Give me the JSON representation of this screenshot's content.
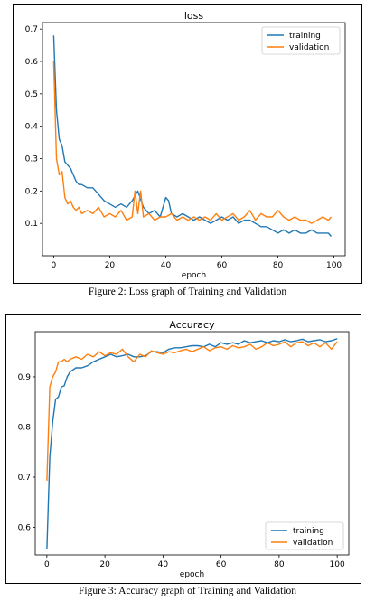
{
  "figures": [
    {
      "caption": "Figure 2: Loss graph of Training and Validation"
    },
    {
      "caption": "Figure 3: Accuracy graph of Training and Validation"
    }
  ],
  "chart_data": [
    {
      "type": "line",
      "title": "loss",
      "xlabel": "epoch",
      "ylabel": "",
      "xlim": [
        -4,
        104
      ],
      "ylim": [
        0.0,
        0.72
      ],
      "xticks": [
        0,
        20,
        40,
        60,
        80,
        100
      ],
      "yticks": [
        0.1,
        0.2,
        0.3,
        0.4,
        0.5,
        0.6,
        0.7
      ],
      "ytick_labels": [
        "0.1",
        "0.2",
        "0.3",
        "0.4",
        "0.5",
        "0.6",
        "0.7"
      ],
      "legend": "top-right",
      "grid": false,
      "series": [
        {
          "name": "training",
          "color": "#1f77b4",
          "x": [
            0,
            1,
            2,
            3,
            4,
            5,
            6,
            7,
            8,
            9,
            10,
            12,
            14,
            16,
            18,
            20,
            22,
            24,
            26,
            28,
            30,
            32,
            34,
            36,
            38,
            40,
            41,
            42,
            44,
            46,
            48,
            50,
            52,
            54,
            56,
            58,
            60,
            62,
            64,
            66,
            68,
            70,
            72,
            74,
            76,
            78,
            80,
            82,
            84,
            86,
            88,
            90,
            92,
            94,
            96,
            98,
            99
          ],
          "y": [
            0.68,
            0.45,
            0.36,
            0.34,
            0.29,
            0.28,
            0.27,
            0.25,
            0.23,
            0.22,
            0.22,
            0.21,
            0.21,
            0.19,
            0.17,
            0.16,
            0.15,
            0.16,
            0.15,
            0.17,
            0.2,
            0.15,
            0.13,
            0.14,
            0.12,
            0.18,
            0.17,
            0.13,
            0.12,
            0.13,
            0.12,
            0.11,
            0.12,
            0.11,
            0.1,
            0.11,
            0.12,
            0.11,
            0.12,
            0.1,
            0.11,
            0.11,
            0.1,
            0.09,
            0.09,
            0.08,
            0.07,
            0.08,
            0.07,
            0.08,
            0.07,
            0.07,
            0.08,
            0.07,
            0.07,
            0.07,
            0.06
          ]
        },
        {
          "name": "validation",
          "color": "#ff7f0e",
          "x": [
            0,
            1,
            2,
            3,
            4,
            5,
            6,
            7,
            8,
            9,
            10,
            12,
            14,
            16,
            18,
            20,
            22,
            24,
            26,
            28,
            29,
            30,
            31,
            32,
            34,
            36,
            38,
            40,
            42,
            44,
            46,
            48,
            50,
            52,
            54,
            56,
            58,
            60,
            62,
            64,
            66,
            68,
            70,
            72,
            74,
            76,
            78,
            80,
            82,
            84,
            86,
            88,
            90,
            92,
            94,
            96,
            98,
            99
          ],
          "y": [
            0.6,
            0.3,
            0.25,
            0.26,
            0.18,
            0.16,
            0.17,
            0.15,
            0.14,
            0.15,
            0.13,
            0.14,
            0.13,
            0.15,
            0.12,
            0.13,
            0.12,
            0.14,
            0.11,
            0.12,
            0.2,
            0.13,
            0.2,
            0.12,
            0.13,
            0.11,
            0.12,
            0.12,
            0.13,
            0.11,
            0.12,
            0.11,
            0.12,
            0.11,
            0.12,
            0.11,
            0.13,
            0.11,
            0.12,
            0.13,
            0.11,
            0.12,
            0.14,
            0.11,
            0.13,
            0.12,
            0.12,
            0.14,
            0.12,
            0.11,
            0.12,
            0.11,
            0.11,
            0.1,
            0.11,
            0.12,
            0.11,
            0.12
          ]
        }
      ]
    },
    {
      "type": "line",
      "title": "Accuracy",
      "xlabel": "epoch",
      "ylabel": "",
      "xlim": [
        -4,
        104
      ],
      "ylim": [
        0.545,
        0.99
      ],
      "xticks": [
        0,
        20,
        40,
        60,
        80,
        100
      ],
      "yticks": [
        0.6,
        0.7,
        0.8,
        0.9
      ],
      "ytick_labels": [
        "0.6",
        "0.7",
        "0.8",
        "0.9"
      ],
      "legend": "bottom-right",
      "grid": false,
      "series": [
        {
          "name": "training",
          "color": "#1f77b4",
          "x": [
            0,
            1,
            2,
            3,
            4,
            5,
            6,
            7,
            8,
            10,
            12,
            14,
            16,
            18,
            20,
            22,
            24,
            26,
            28,
            30,
            32,
            34,
            36,
            38,
            40,
            42,
            44,
            46,
            48,
            50,
            52,
            54,
            56,
            58,
            60,
            62,
            64,
            66,
            68,
            70,
            72,
            74,
            76,
            78,
            80,
            82,
            84,
            86,
            88,
            90,
            92,
            94,
            96,
            98,
            100
          ],
          "y": [
            0.557,
            0.74,
            0.81,
            0.855,
            0.86,
            0.88,
            0.882,
            0.9,
            0.91,
            0.918,
            0.918,
            0.922,
            0.93,
            0.935,
            0.94,
            0.945,
            0.94,
            0.942,
            0.945,
            0.94,
            0.94,
            0.942,
            0.95,
            0.95,
            0.948,
            0.955,
            0.958,
            0.958,
            0.96,
            0.962,
            0.962,
            0.96,
            0.965,
            0.96,
            0.968,
            0.965,
            0.968,
            0.965,
            0.972,
            0.968,
            0.97,
            0.972,
            0.968,
            0.972,
            0.97,
            0.974,
            0.97,
            0.972,
            0.975,
            0.97,
            0.972,
            0.974,
            0.97,
            0.972,
            0.976
          ]
        },
        {
          "name": "validation",
          "color": "#ff7f0e",
          "x": [
            0,
            1,
            2,
            3,
            4,
            5,
            6,
            7,
            8,
            10,
            12,
            14,
            16,
            18,
            20,
            22,
            24,
            26,
            28,
            30,
            32,
            34,
            36,
            38,
            40,
            42,
            44,
            46,
            48,
            50,
            52,
            54,
            56,
            58,
            60,
            62,
            64,
            66,
            68,
            70,
            72,
            74,
            76,
            78,
            80,
            82,
            84,
            86,
            88,
            90,
            92,
            94,
            96,
            98,
            100
          ],
          "y": [
            0.693,
            0.88,
            0.9,
            0.91,
            0.93,
            0.93,
            0.935,
            0.93,
            0.935,
            0.94,
            0.935,
            0.945,
            0.94,
            0.95,
            0.942,
            0.948,
            0.945,
            0.955,
            0.94,
            0.93,
            0.945,
            0.94,
            0.952,
            0.948,
            0.945,
            0.95,
            0.948,
            0.952,
            0.955,
            0.95,
            0.955,
            0.96,
            0.952,
            0.958,
            0.96,
            0.955,
            0.962,
            0.958,
            0.96,
            0.965,
            0.955,
            0.96,
            0.968,
            0.962,
            0.965,
            0.97,
            0.96,
            0.968,
            0.97,
            0.962,
            0.968,
            0.96,
            0.968,
            0.955,
            0.97
          ]
        }
      ]
    }
  ]
}
